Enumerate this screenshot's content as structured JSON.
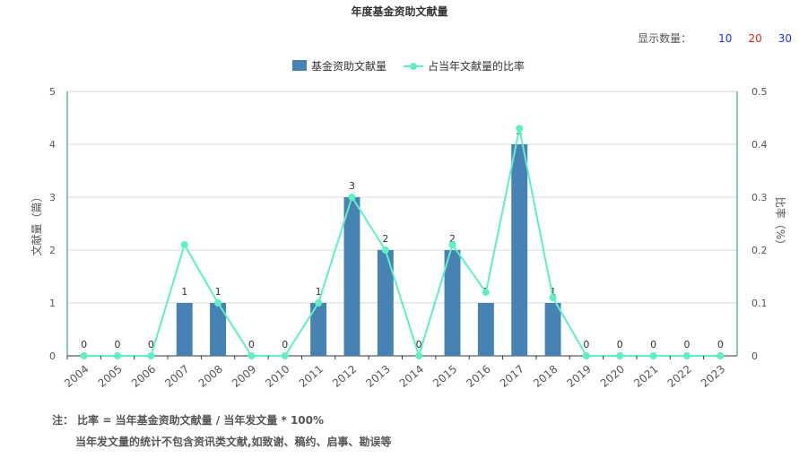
{
  "title": "年度基金资助文献量",
  "display_count": {
    "label": "显示数量：",
    "options": [
      "10",
      "20",
      "30"
    ]
  },
  "notes": {
    "line1": "注： 比率 = 当年基金资助文献量 / 当年发文量 * 100%",
    "line2": "当年发文量的统计不包含资讯类文献,如致谢、稿约、启事、勘误等"
  },
  "colors": {
    "bar": "#4682b4",
    "line": "#5ef0c4",
    "axis_right": "#1c8a80",
    "axis_left": "#1c8a80"
  },
  "chart_data": {
    "type": "bar",
    "categories": [
      "2004",
      "2005",
      "2006",
      "2007",
      "2008",
      "2009",
      "2010",
      "2011",
      "2012",
      "2013",
      "2014",
      "2015",
      "2016",
      "2017",
      "2018",
      "2019",
      "2020",
      "2021",
      "2022",
      "2023"
    ],
    "series": [
      {
        "name": "基金资助文献量",
        "type": "bar",
        "axis": "left",
        "values": [
          0,
          0,
          0,
          1,
          1,
          0,
          0,
          1,
          3,
          2,
          0,
          2,
          1,
          4,
          1,
          0,
          0,
          0,
          0,
          0
        ]
      },
      {
        "name": "占当年文献量的比率",
        "type": "line",
        "axis": "right",
        "values": [
          0,
          0,
          0,
          0.21,
          0.1,
          0,
          0,
          0.1,
          0.3,
          0.2,
          0,
          0.21,
          0.12,
          0.43,
          0.11,
          0,
          0,
          0,
          0,
          0
        ]
      }
    ],
    "ylabel": "文献量（篇）",
    "ylabel_right": "比率（%）",
    "ylim": [
      0,
      5
    ],
    "ylim_right": [
      0,
      0.5
    ],
    "yticks": [
      "0",
      "1",
      "2",
      "3",
      "4",
      "5"
    ],
    "yticks_right": [
      "0",
      "0.1",
      "0.2",
      "0.3",
      "0.4",
      "0.5"
    ],
    "grid": true,
    "legend_position": "top-center"
  }
}
